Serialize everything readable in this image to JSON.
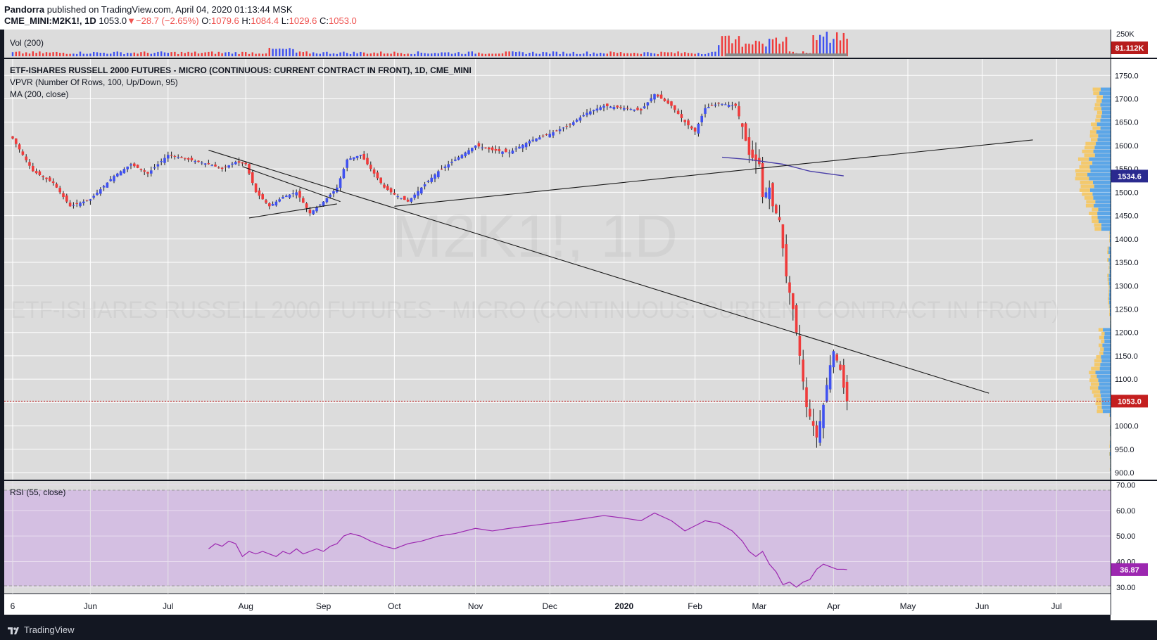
{
  "header": {
    "author": "Pandorra",
    "published_text": "published on TradingView.com, April 04, 2020 01:13:44 MSK",
    "symbol": "CME_MINI:M2K1!, 1D",
    "last": "1053.0",
    "change_arrow": "▼",
    "change": "−28.7 (−2.65%)",
    "o_label": "O:",
    "o_value": "1079.6",
    "h_label": "H:",
    "h_value": "1084.4",
    "l_label": "L:",
    "l_value": "1029.6",
    "c_label": "C:",
    "c_value": "1053.0"
  },
  "footer": {
    "brand": "TradingView"
  },
  "colors": {
    "up": "#3f51f0",
    "down": "#ef3b3b",
    "panel_bg": "#dcdcdc",
    "rsi_band": "#d4bfe2",
    "ma": "#4a3fa8",
    "rsi": "#9c27b0"
  },
  "chart_data": [
    {
      "type": "candlestick",
      "title": "ETF-ISHARES RUSSELL 2000 FUTURES - MICRO (CONTINUOUS: CURRENT CONTRACT IN FRONT), 1D, CME_MINI",
      "indicators": [
        "VPVR (Number Of Rows, 100, Up/Down, 95)",
        "MA (200, close)"
      ],
      "watermark_symbol": "M2K1!, 1D",
      "watermark_name": "ETF-ISHARES RUSSELL 2000 FUTURES - MICRO (CONTINUOUS: CURRENT CONTRACT IN FRONT)",
      "ylim": [
        885,
        1785
      ],
      "yticks": [
        "1750.0",
        "1700.0",
        "1650.0",
        "1600.0",
        "1550.0",
        "1500.0",
        "1450.0",
        "1400.0",
        "1350.0",
        "1300.0",
        "1250.0",
        "1200.0",
        "1150.0",
        "1100.0",
        "1050.0",
        "1000.0",
        "950.0",
        "900.0"
      ],
      "xticks": [
        {
          "label": "6",
          "t": 0
        },
        {
          "label": "Jun",
          "t": 23
        },
        {
          "label": "Jul",
          "t": 46
        },
        {
          "label": "Aug",
          "t": 69
        },
        {
          "label": "Sep",
          "t": 92
        },
        {
          "label": "Oct",
          "t": 113
        },
        {
          "label": "Nov",
          "t": 137
        },
        {
          "label": "Dec",
          "t": 159
        },
        {
          "label": "2020",
          "t": 181
        },
        {
          "label": "Feb",
          "t": 202
        },
        {
          "label": "Mar",
          "t": 221
        },
        {
          "label": "Apr",
          "t": 243
        },
        {
          "label": "May",
          "t": 265
        },
        {
          "label": "Jun",
          "t": 287
        },
        {
          "label": "Jul",
          "t": 309
        }
      ],
      "close_path": [
        [
          0,
          1615
        ],
        [
          6,
          1545
        ],
        [
          12,
          1520
        ],
        [
          17,
          1470
        ],
        [
          23,
          1485
        ],
        [
          30,
          1535
        ],
        [
          35,
          1560
        ],
        [
          40,
          1540
        ],
        [
          46,
          1580
        ],
        [
          52,
          1570
        ],
        [
          58,
          1560
        ],
        [
          62,
          1550
        ],
        [
          66,
          1565
        ],
        [
          69,
          1560
        ],
        [
          72,
          1500
        ],
        [
          76,
          1470
        ],
        [
          80,
          1490
        ],
        [
          84,
          1500
        ],
        [
          88,
          1455
        ],
        [
          92,
          1480
        ],
        [
          96,
          1510
        ],
        [
          99,
          1570
        ],
        [
          103,
          1580
        ],
        [
          106,
          1550
        ],
        [
          110,
          1510
        ],
        [
          113,
          1495
        ],
        [
          117,
          1480
        ],
        [
          121,
          1510
        ],
        [
          126,
          1545
        ],
        [
          131,
          1570
        ],
        [
          137,
          1600
        ],
        [
          142,
          1590
        ],
        [
          147,
          1585
        ],
        [
          153,
          1610
        ],
        [
          159,
          1625
        ],
        [
          165,
          1645
        ],
        [
          170,
          1670
        ],
        [
          175,
          1685
        ],
        [
          181,
          1680
        ],
        [
          186,
          1675
        ],
        [
          190,
          1710
        ],
        [
          195,
          1685
        ],
        [
          199,
          1650
        ],
        [
          202,
          1630
        ],
        [
          205,
          1680
        ],
        [
          209,
          1690
        ],
        [
          214,
          1685
        ],
        [
          216,
          1640
        ],
        [
          218,
          1580
        ],
        [
          221,
          1560
        ],
        [
          222,
          1490
        ],
        [
          224,
          1510
        ],
        [
          225,
          1470
        ],
        [
          227,
          1440
        ],
        [
          229,
          1320
        ],
        [
          231,
          1250
        ],
        [
          233,
          1150
        ],
        [
          235,
          1040
        ],
        [
          237,
          1000
        ],
        [
          238,
          975
        ],
        [
          240,
          1045
        ],
        [
          242,
          1130
        ],
        [
          243,
          1160
        ],
        [
          245,
          1120
        ],
        [
          246,
          1081.7
        ],
        [
          247,
          1053
        ]
      ],
      "last_price_label": "1053.0",
      "vpvr_poc_label": "1534.6",
      "ma_200": [
        [
          210,
          1575
        ],
        [
          218,
          1570
        ],
        [
          228,
          1560
        ],
        [
          236,
          1545
        ],
        [
          246,
          1535
        ]
      ],
      "trend_lines": [
        {
          "from": [
            58,
            1590
          ],
          "to": [
            289,
            1070
          ]
        },
        {
          "from": [
            113,
            1470
          ],
          "to": [
            302,
            1612
          ]
        },
        {
          "from": [
            68,
            1555
          ],
          "to": [
            97,
            1480
          ]
        },
        {
          "from": [
            70,
            1445
          ],
          "to": [
            96,
            1475
          ]
        }
      ]
    },
    {
      "type": "bar",
      "title": "Vol (200)",
      "yticks": [
        "250K"
      ],
      "last_value_label": "81.112K"
    },
    {
      "type": "line",
      "title": "RSI (55, close)",
      "ylim": [
        27.5,
        71.5
      ],
      "yticks": [
        "70.00",
        "60.00",
        "50.00",
        "40.00",
        "30.00"
      ],
      "last_value_label": "36.87",
      "series": [
        {
          "x": [
            58,
            60,
            62,
            64,
            66,
            68,
            70,
            72,
            74,
            76,
            78,
            80,
            82,
            84,
            86,
            88,
            90,
            92,
            94,
            96,
            98,
            100,
            103,
            106,
            110,
            113,
            117,
            121,
            126,
            131,
            137,
            142,
            147,
            153,
            159,
            165,
            170,
            175,
            181,
            186,
            190,
            195,
            199,
            202,
            205,
            209,
            213,
            216,
            218,
            220,
            222,
            224,
            226,
            228,
            230,
            232,
            234,
            236,
            238,
            240,
            242,
            244,
            246,
            247
          ],
          "y": [
            45,
            47,
            46,
            48,
            47,
            42,
            44,
            43,
            44,
            43,
            42,
            44,
            43,
            45,
            43,
            44,
            45,
            44,
            46,
            47,
            50,
            51,
            50,
            48,
            46,
            45,
            47,
            48,
            50,
            51,
            53,
            52,
            53,
            54,
            55,
            56,
            57,
            58,
            57,
            56,
            59,
            56,
            52,
            54,
            56,
            55,
            52,
            48,
            44,
            42,
            44,
            39,
            36,
            31,
            32,
            30,
            32,
            33,
            37,
            39,
            38,
            37,
            37,
            36.87
          ]
        }
      ]
    }
  ]
}
